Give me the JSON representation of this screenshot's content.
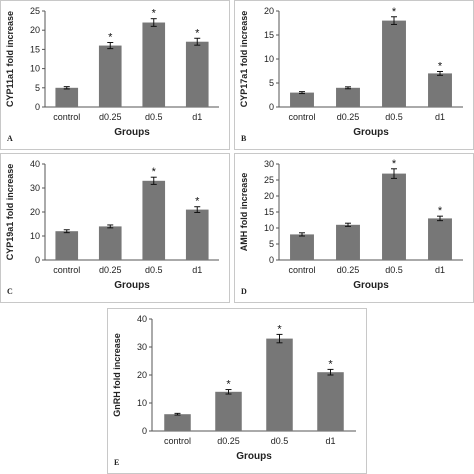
{
  "chart_data": [
    {
      "panel": "A",
      "type": "bar",
      "categories": [
        "control",
        "d0.25",
        "d0.5",
        "d1"
      ],
      "values": [
        5,
        16,
        22,
        17
      ],
      "errors": [
        0.3,
        0.8,
        1.0,
        0.9
      ],
      "significant": [
        false,
        true,
        true,
        true
      ],
      "marker": "*",
      "ylabel": "CYP11a1 fold increase",
      "xlabel": "Groups",
      "ylim": [
        0,
        25
      ],
      "yticks": [
        0,
        5,
        10,
        15,
        20,
        25
      ],
      "bar_color": "#777777",
      "grid": false
    },
    {
      "panel": "B",
      "type": "bar",
      "categories": [
        "control",
        "d0.25",
        "d0.5",
        "d1"
      ],
      "values": [
        3,
        4,
        18,
        7
      ],
      "errors": [
        0.2,
        0.2,
        0.8,
        0.4
      ],
      "significant": [
        false,
        false,
        true,
        true
      ],
      "marker": "*",
      "ylabel": "CYP17a1 fold increase",
      "xlabel": "Groups",
      "ylim": [
        0,
        20
      ],
      "yticks": [
        0,
        5,
        10,
        15,
        20
      ],
      "bar_color": "#777777",
      "grid": false
    },
    {
      "panel": "C",
      "type": "bar",
      "categories": [
        "control",
        "d0.25",
        "d0.5",
        "d1"
      ],
      "values": [
        12,
        14,
        33,
        21
      ],
      "errors": [
        0.6,
        0.6,
        1.5,
        1.2
      ],
      "significant": [
        false,
        false,
        true,
        true
      ],
      "marker": "*",
      "ylabel": "CYP19a1 fold increase",
      "xlabel": "Groups",
      "ylim": [
        0,
        40
      ],
      "yticks": [
        0,
        10,
        20,
        30,
        40
      ],
      "bar_color": "#777777",
      "grid": false
    },
    {
      "panel": "D",
      "type": "bar",
      "categories": [
        "control",
        "d0.25",
        "d0.5",
        "d1"
      ],
      "values": [
        8,
        11,
        27,
        13
      ],
      "errors": [
        0.5,
        0.5,
        1.5,
        0.7
      ],
      "significant": [
        false,
        false,
        true,
        true
      ],
      "marker": "*",
      "ylabel": "AMH fold increase",
      "xlabel": "Groups",
      "ylim": [
        0,
        30
      ],
      "yticks": [
        0,
        5,
        10,
        15,
        20,
        25,
        30
      ],
      "bar_color": "#777777",
      "grid": false
    },
    {
      "panel": "E",
      "type": "bar",
      "categories": [
        "control",
        "d0.25",
        "d0.5",
        "d1"
      ],
      "values": [
        6,
        14,
        33,
        21
      ],
      "errors": [
        0.3,
        0.8,
        1.5,
        1.0
      ],
      "significant": [
        false,
        true,
        true,
        true
      ],
      "marker": "*",
      "ylabel": "GnRH fold increase",
      "xlabel": "Groups",
      "ylim": [
        0,
        40
      ],
      "yticks": [
        0,
        10,
        20,
        30,
        40
      ],
      "bar_color": "#777777",
      "grid": false
    }
  ]
}
